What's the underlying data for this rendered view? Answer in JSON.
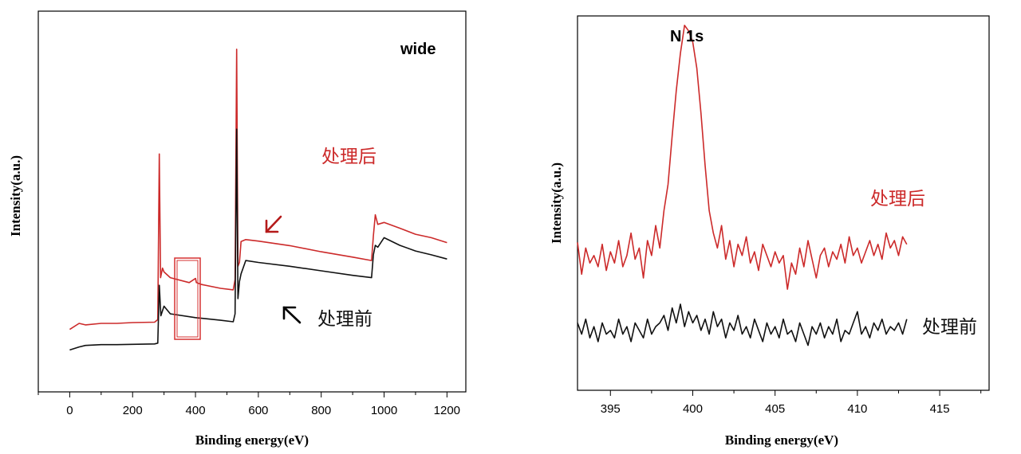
{
  "colors": {
    "after": "#cc2a2a",
    "before": "#111111",
    "box": "#d63030",
    "arrow_after": "#b51a1a",
    "arrow_before": "#000000"
  },
  "chart_data": [
    {
      "type": "line",
      "title": "wide",
      "xlabel": "Binding energy(eV)",
      "ylabel": "Intensity(a.u.)",
      "xlim": [
        -100,
        1260
      ],
      "xticks": [
        0,
        200,
        400,
        600,
        800,
        1000,
        1200
      ],
      "series_labels": {
        "after": "处理后",
        "before": "处理前"
      },
      "series": [
        {
          "name": "处理后",
          "color": "after",
          "points": [
            [
              0,
              0.164
            ],
            [
              30,
              0.18
            ],
            [
              50,
              0.176
            ],
            [
              100,
              0.18
            ],
            [
              150,
              0.18
            ],
            [
              200,
              0.182
            ],
            [
              270,
              0.183
            ],
            [
              280,
              0.19
            ],
            [
              285,
              0.625
            ],
            [
              289,
              0.3
            ],
            [
              295,
              0.325
            ],
            [
              300,
              0.315
            ],
            [
              320,
              0.3
            ],
            [
              380,
              0.287
            ],
            [
              400,
              0.298
            ],
            [
              403,
              0.287
            ],
            [
              420,
              0.282
            ],
            [
              480,
              0.272
            ],
            [
              520,
              0.268
            ],
            [
              526,
              0.295
            ],
            [
              531,
              0.9
            ],
            [
              535,
              0.33
            ],
            [
              540,
              0.34
            ],
            [
              545,
              0.395
            ],
            [
              560,
              0.4
            ],
            [
              600,
              0.396
            ],
            [
              700,
              0.384
            ],
            [
              800,
              0.368
            ],
            [
              900,
              0.354
            ],
            [
              960,
              0.345
            ],
            [
              966,
              0.41
            ],
            [
              972,
              0.465
            ],
            [
              980,
              0.44
            ],
            [
              1000,
              0.445
            ],
            [
              1050,
              0.43
            ],
            [
              1100,
              0.414
            ],
            [
              1150,
              0.405
            ],
            [
              1200,
              0.392
            ]
          ]
        },
        {
          "name": "处理前",
          "color": "before",
          "points": [
            [
              0,
              0.11
            ],
            [
              30,
              0.118
            ],
            [
              50,
              0.122
            ],
            [
              100,
              0.124
            ],
            [
              150,
              0.124
            ],
            [
              200,
              0.125
            ],
            [
              270,
              0.126
            ],
            [
              280,
              0.128
            ],
            [
              285,
              0.28
            ],
            [
              290,
              0.2
            ],
            [
              300,
              0.225
            ],
            [
              320,
              0.205
            ],
            [
              400,
              0.195
            ],
            [
              480,
              0.188
            ],
            [
              520,
              0.184
            ],
            [
              526,
              0.205
            ],
            [
              531,
              0.69
            ],
            [
              535,
              0.245
            ],
            [
              540,
              0.29
            ],
            [
              545,
              0.31
            ],
            [
              560,
              0.345
            ],
            [
              600,
              0.34
            ],
            [
              700,
              0.33
            ],
            [
              800,
              0.318
            ],
            [
              900,
              0.306
            ],
            [
              960,
              0.3
            ],
            [
              966,
              0.36
            ],
            [
              972,
              0.385
            ],
            [
              980,
              0.38
            ],
            [
              1000,
              0.405
            ],
            [
              1050,
              0.385
            ],
            [
              1100,
              0.37
            ],
            [
              1150,
              0.36
            ],
            [
              1200,
              0.349
            ]
          ]
        }
      ]
    },
    {
      "type": "line",
      "title": "N 1s",
      "xlabel": "Binding energy(eV)",
      "ylabel": "Intensity(a.u.)",
      "xlim": [
        393,
        418
      ],
      "xticks": [
        395,
        400,
        405,
        410,
        415
      ],
      "series_labels": {
        "after": "处理后",
        "before": "处理前"
      },
      "series": [
        {
          "name": "处理后",
          "color": "after",
          "x": [
            393.0,
            393.25,
            393.5,
            393.75,
            394.0,
            394.25,
            394.5,
            394.75,
            395.0,
            395.25,
            395.5,
            395.75,
            396.0,
            396.25,
            396.5,
            396.75,
            397.0,
            397.25,
            397.5,
            397.75,
            398.0,
            398.25,
            398.5,
            398.75,
            399.0,
            399.25,
            399.5,
            399.75,
            400.0,
            400.25,
            400.5,
            400.75,
            401.0,
            401.25,
            401.5,
            401.75,
            402.0,
            402.25,
            402.5,
            402.75,
            403.0,
            403.25,
            403.5,
            403.75,
            404.0,
            404.25,
            404.5,
            404.75,
            405.0,
            405.25,
            405.5,
            405.75,
            406.0,
            406.25,
            406.5,
            406.75,
            407.0,
            407.25,
            407.5,
            407.75,
            408.0,
            408.25,
            408.5,
            408.75,
            409.0,
            409.25,
            409.5,
            409.75,
            410.0,
            410.25,
            410.5,
            410.75,
            411.0,
            411.25,
            411.5,
            411.75,
            412.0,
            412.25,
            412.5,
            412.75,
            413.0
          ],
          "y": [
            0.395,
            0.31,
            0.38,
            0.34,
            0.36,
            0.33,
            0.39,
            0.32,
            0.37,
            0.34,
            0.4,
            0.33,
            0.36,
            0.42,
            0.35,
            0.38,
            0.3,
            0.4,
            0.36,
            0.44,
            0.38,
            0.48,
            0.55,
            0.68,
            0.8,
            0.9,
            0.975,
            0.96,
            0.93,
            0.86,
            0.74,
            0.6,
            0.48,
            0.42,
            0.38,
            0.44,
            0.35,
            0.4,
            0.33,
            0.39,
            0.36,
            0.41,
            0.34,
            0.37,
            0.32,
            0.39,
            0.36,
            0.33,
            0.37,
            0.34,
            0.36,
            0.27,
            0.34,
            0.31,
            0.38,
            0.33,
            0.4,
            0.35,
            0.3,
            0.36,
            0.38,
            0.33,
            0.37,
            0.35,
            0.39,
            0.34,
            0.41,
            0.36,
            0.38,
            0.34,
            0.37,
            0.4,
            0.36,
            0.39,
            0.35,
            0.42,
            0.38,
            0.4,
            0.36,
            0.41,
            0.39
          ]
        },
        {
          "name": "处理前",
          "color": "before",
          "x": [
            393.0,
            393.25,
            393.5,
            393.75,
            394.0,
            394.25,
            394.5,
            394.75,
            395.0,
            395.25,
            395.5,
            395.75,
            396.0,
            396.25,
            396.5,
            396.75,
            397.0,
            397.25,
            397.5,
            397.75,
            398.0,
            398.25,
            398.5,
            398.75,
            399.0,
            399.25,
            399.5,
            399.75,
            400.0,
            400.25,
            400.5,
            400.75,
            401.0,
            401.25,
            401.5,
            401.75,
            402.0,
            402.25,
            402.5,
            402.75,
            403.0,
            403.25,
            403.5,
            403.75,
            404.0,
            404.25,
            404.5,
            404.75,
            405.0,
            405.25,
            405.5,
            405.75,
            406.0,
            406.25,
            406.5,
            406.75,
            407.0,
            407.25,
            407.5,
            407.75,
            408.0,
            408.25,
            408.5,
            408.75,
            409.0,
            409.25,
            409.5,
            409.75,
            410.0,
            410.25,
            410.5,
            410.75,
            411.0,
            411.25,
            411.5,
            411.75,
            412.0,
            412.25,
            412.5,
            412.75,
            413.0
          ],
          "y": [
            0.18,
            0.15,
            0.19,
            0.14,
            0.17,
            0.13,
            0.18,
            0.15,
            0.16,
            0.14,
            0.19,
            0.15,
            0.17,
            0.13,
            0.18,
            0.16,
            0.14,
            0.19,
            0.15,
            0.17,
            0.18,
            0.2,
            0.16,
            0.22,
            0.18,
            0.23,
            0.17,
            0.21,
            0.18,
            0.2,
            0.16,
            0.19,
            0.15,
            0.21,
            0.17,
            0.19,
            0.14,
            0.18,
            0.16,
            0.2,
            0.15,
            0.17,
            0.14,
            0.19,
            0.16,
            0.13,
            0.18,
            0.15,
            0.17,
            0.14,
            0.19,
            0.15,
            0.16,
            0.13,
            0.18,
            0.15,
            0.12,
            0.17,
            0.15,
            0.18,
            0.14,
            0.17,
            0.15,
            0.19,
            0.13,
            0.16,
            0.15,
            0.18,
            0.21,
            0.15,
            0.17,
            0.14,
            0.18,
            0.16,
            0.19,
            0.15,
            0.17,
            0.16,
            0.18,
            0.15,
            0.19
          ]
        }
      ]
    }
  ]
}
